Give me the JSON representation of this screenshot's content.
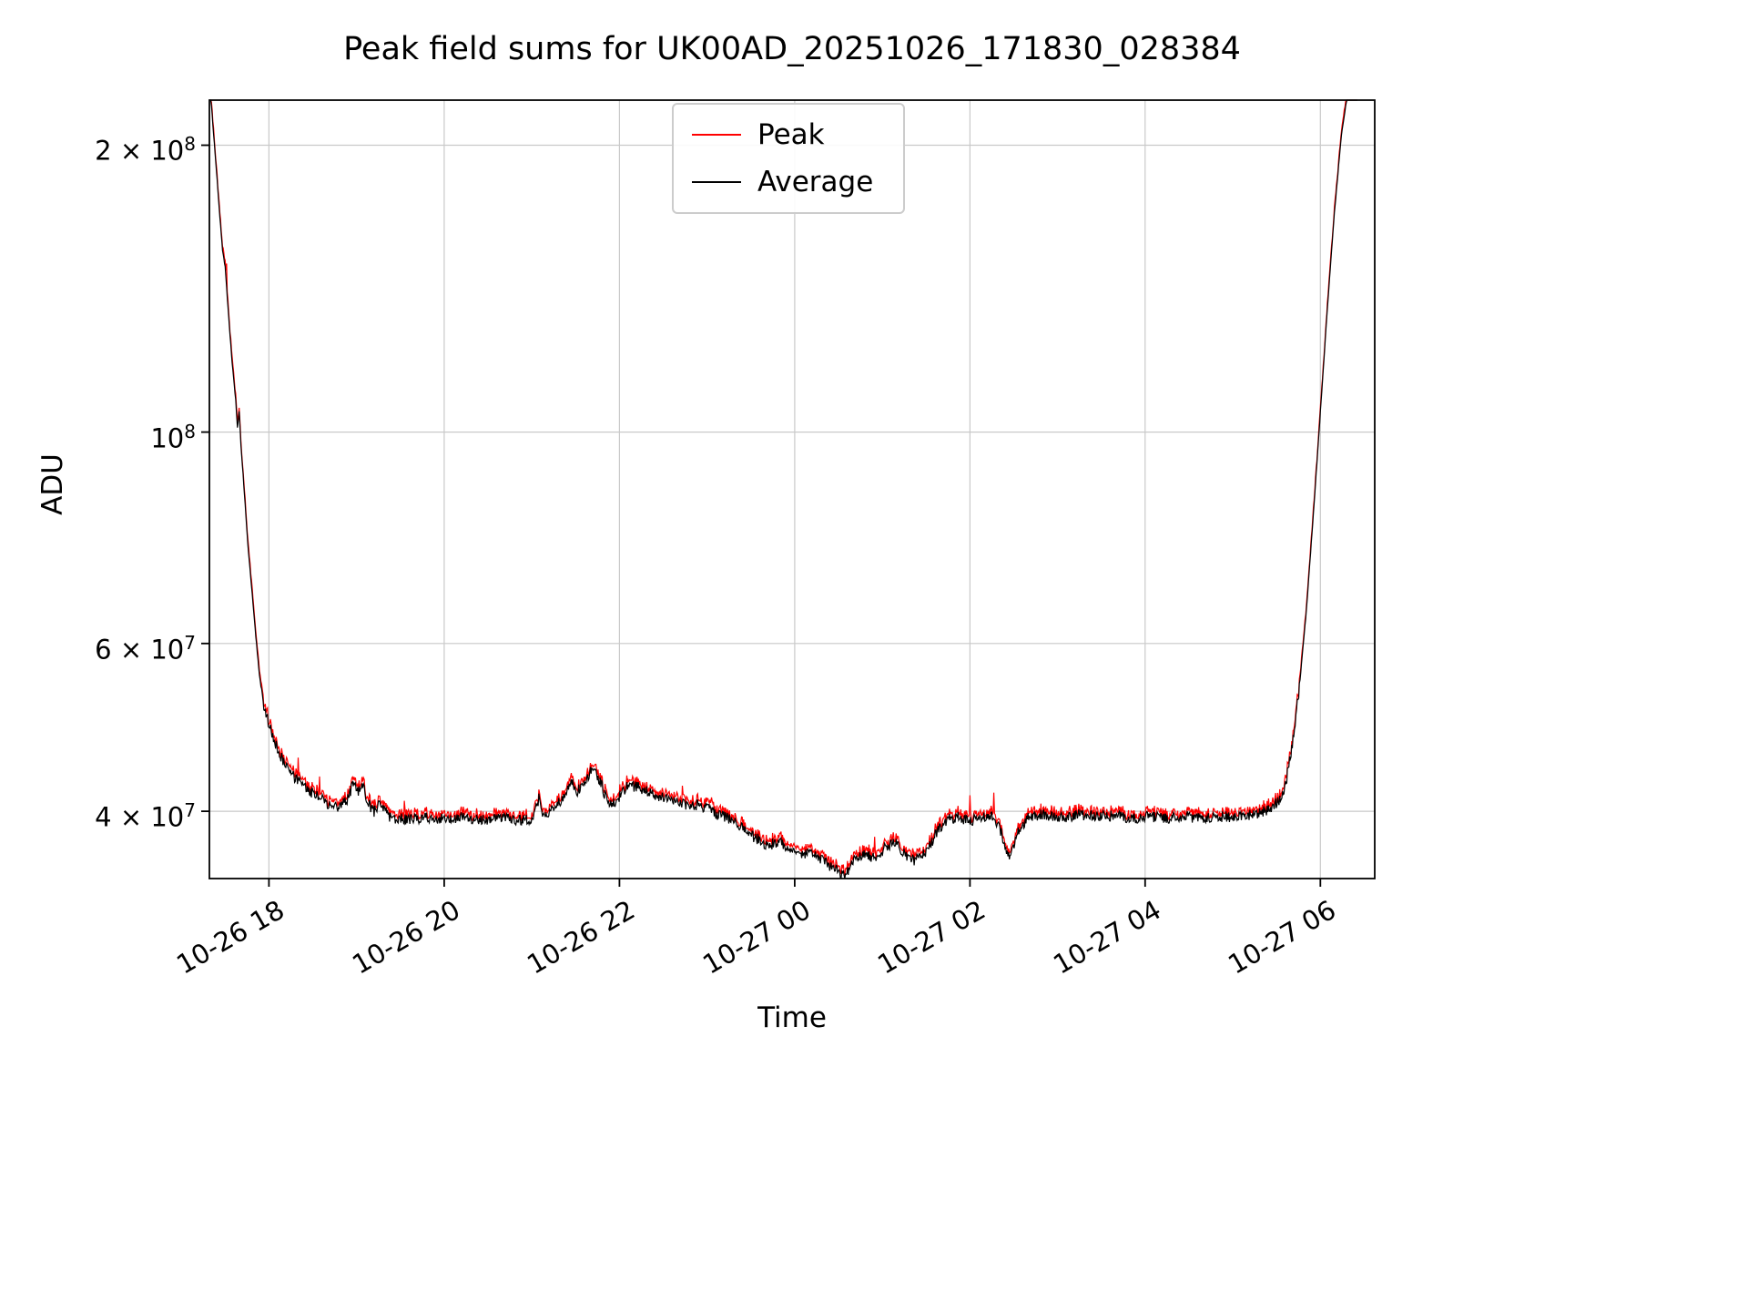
{
  "chart_data": {
    "type": "line",
    "title": "Peak field sums for UK00AD_20251026_171830_028384",
    "xlabel": "Time",
    "ylabel": "ADU",
    "y_scale": "log",
    "grid": true,
    "legend_position": "upper center",
    "xlim_hours": [
      17.32,
      30.62
    ],
    "ylim": [
      34000000,
      223000000
    ],
    "x_ticks": [
      {
        "hour": 18,
        "label": "10-26 18"
      },
      {
        "hour": 20,
        "label": "10-26 20"
      },
      {
        "hour": 22,
        "label": "10-26 22"
      },
      {
        "hour": 24,
        "label": "10-27 00"
      },
      {
        "hour": 26,
        "label": "10-27 02"
      },
      {
        "hour": 28,
        "label": "10-27 04"
      },
      {
        "hour": 30,
        "label": "10-27 06"
      }
    ],
    "y_ticks": [
      {
        "value": 200000000,
        "mantissa": "2 × 10",
        "exponent": "8"
      },
      {
        "value": 100000000,
        "mantissa": "10",
        "exponent": "8"
      },
      {
        "value": 60000000,
        "mantissa": "6 × 10",
        "exponent": "7"
      },
      {
        "value": 40000000,
        "mantissa": "4 × 10",
        "exponent": "7"
      }
    ],
    "series": [
      {
        "name": "Peak",
        "color": "#ff0000",
        "derived_from": "Average",
        "description": "slightly above Average with occasional upward spikes"
      },
      {
        "name": "Average",
        "color": "#000000",
        "anchors_t_hours_value_1e7_ADU": [
          [
            17.32,
            23.5
          ],
          [
            17.36,
            21.0
          ],
          [
            17.4,
            18.8
          ],
          [
            17.44,
            16.8
          ],
          [
            17.47,
            15.5
          ],
          [
            17.5,
            14.9
          ],
          [
            17.54,
            13.2
          ],
          [
            17.58,
            11.8
          ],
          [
            17.62,
            10.8
          ],
          [
            17.64,
            10.1
          ],
          [
            17.66,
            10.5
          ],
          [
            17.68,
            9.7
          ],
          [
            17.72,
            8.6
          ],
          [
            17.76,
            7.6
          ],
          [
            17.8,
            6.9
          ],
          [
            17.85,
            6.1
          ],
          [
            17.9,
            5.45
          ],
          [
            17.95,
            5.1
          ],
          [
            18.0,
            4.95
          ],
          [
            18.06,
            4.75
          ],
          [
            18.12,
            4.6
          ],
          [
            18.2,
            4.45
          ],
          [
            18.3,
            4.33
          ],
          [
            18.4,
            4.25
          ],
          [
            18.5,
            4.18
          ],
          [
            18.6,
            4.12
          ],
          [
            18.7,
            4.06
          ],
          [
            18.8,
            4.03
          ],
          [
            18.9,
            4.12
          ],
          [
            18.97,
            4.3
          ],
          [
            19.02,
            4.18
          ],
          [
            19.07,
            4.28
          ],
          [
            19.13,
            4.08
          ],
          [
            19.2,
            4.0
          ],
          [
            19.28,
            4.08
          ],
          [
            19.36,
            3.96
          ],
          [
            19.45,
            3.93
          ],
          [
            19.6,
            3.92
          ],
          [
            19.75,
            3.94
          ],
          [
            19.9,
            3.92
          ],
          [
            20.05,
            3.94
          ],
          [
            20.25,
            3.94
          ],
          [
            20.45,
            3.92
          ],
          [
            20.65,
            3.93
          ],
          [
            20.85,
            3.92
          ],
          [
            21.0,
            3.93
          ],
          [
            21.08,
            4.12
          ],
          [
            21.13,
            3.96
          ],
          [
            21.25,
            4.02
          ],
          [
            21.38,
            4.15
          ],
          [
            21.45,
            4.3
          ],
          [
            21.52,
            4.2
          ],
          [
            21.62,
            4.32
          ],
          [
            21.7,
            4.46
          ],
          [
            21.78,
            4.3
          ],
          [
            21.86,
            4.1
          ],
          [
            21.95,
            4.08
          ],
          [
            22.02,
            4.18
          ],
          [
            22.1,
            4.25
          ],
          [
            22.2,
            4.24
          ],
          [
            22.32,
            4.2
          ],
          [
            22.45,
            4.14
          ],
          [
            22.6,
            4.1
          ],
          [
            22.75,
            4.06
          ],
          [
            22.9,
            4.06
          ],
          [
            23.05,
            4.0
          ],
          [
            23.2,
            3.95
          ],
          [
            23.32,
            3.9
          ],
          [
            23.45,
            3.8
          ],
          [
            23.58,
            3.74
          ],
          [
            23.7,
            3.68
          ],
          [
            23.82,
            3.72
          ],
          [
            23.95,
            3.66
          ],
          [
            24.08,
            3.62
          ],
          [
            24.22,
            3.6
          ],
          [
            24.35,
            3.54
          ],
          [
            24.48,
            3.46
          ],
          [
            24.58,
            3.43
          ],
          [
            24.68,
            3.56
          ],
          [
            24.8,
            3.6
          ],
          [
            24.92,
            3.57
          ],
          [
            25.05,
            3.68
          ],
          [
            25.15,
            3.72
          ],
          [
            25.28,
            3.58
          ],
          [
            25.38,
            3.55
          ],
          [
            25.5,
            3.62
          ],
          [
            25.62,
            3.8
          ],
          [
            25.75,
            3.92
          ],
          [
            25.88,
            3.95
          ],
          [
            26.0,
            3.9
          ],
          [
            26.12,
            3.95
          ],
          [
            26.25,
            3.94
          ],
          [
            26.35,
            3.82
          ],
          [
            26.45,
            3.56
          ],
          [
            26.55,
            3.8
          ],
          [
            26.68,
            3.95
          ],
          [
            26.85,
            3.97
          ],
          [
            27.05,
            3.94
          ],
          [
            27.25,
            3.97
          ],
          [
            27.45,
            3.95
          ],
          [
            27.65,
            3.96
          ],
          [
            27.85,
            3.93
          ],
          [
            28.05,
            3.95
          ],
          [
            28.25,
            3.93
          ],
          [
            28.45,
            3.95
          ],
          [
            28.65,
            3.93
          ],
          [
            28.85,
            3.95
          ],
          [
            29.05,
            3.94
          ],
          [
            29.25,
            3.97
          ],
          [
            29.4,
            4.02
          ],
          [
            29.52,
            4.1
          ],
          [
            29.6,
            4.25
          ],
          [
            29.68,
            4.7
          ],
          [
            29.76,
            5.4
          ],
          [
            29.84,
            6.5
          ],
          [
            29.92,
            8.2
          ],
          [
            30.0,
            10.5
          ],
          [
            30.08,
            13.5
          ],
          [
            30.16,
            17.0
          ],
          [
            30.24,
            20.5
          ],
          [
            30.32,
            23.0
          ],
          [
            30.42,
            24.0
          ]
        ]
      }
    ],
    "render_hints": {
      "seed": 7,
      "sample_step_hours": 0.008,
      "noise_amp_log10": 0.0058,
      "noise_amp_log10_smooth": 0.0008,
      "noise_threshold_ADU": 55000000,
      "peak_offset_log10": 0.003,
      "peak_jitter_log10": 0.004,
      "peak_spike_probability": 0.007,
      "grid_color": "#c9c9c9",
      "line_width": 1.2
    }
  }
}
